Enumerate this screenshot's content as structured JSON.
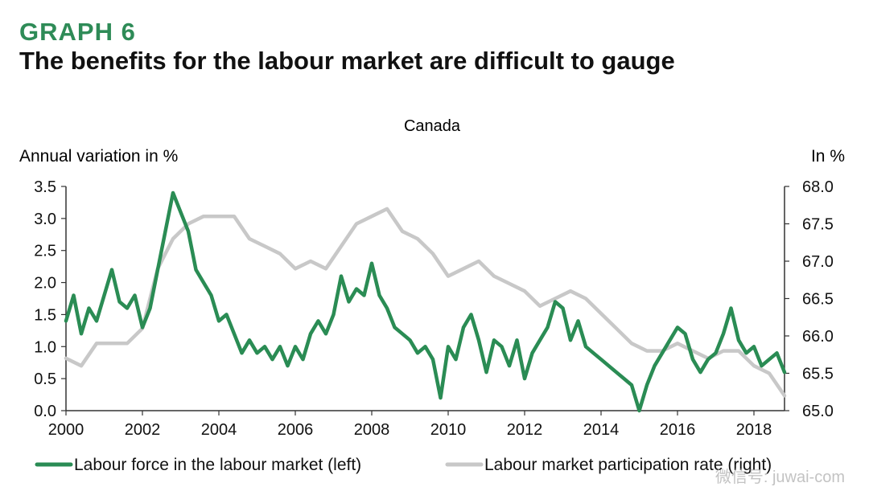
{
  "header": {
    "graph_label": "GRAPH 6",
    "title": "The benefits for the labour market are difficult to gauge"
  },
  "colors": {
    "accent_green": "#2e8b57",
    "series_green": "#2a8c54",
    "series_gray": "#c8c8c8",
    "axis": "#333333"
  },
  "chart_data": {
    "type": "line",
    "title": "Canada",
    "ylabel_left": "Annual variation in %",
    "ylabel_right": "In %",
    "xlim": [
      2000,
      2018.8
    ],
    "ylim_left": [
      0,
      3.5
    ],
    "ylim_right": [
      65.0,
      68.0
    ],
    "x_ticks": [
      "2000",
      "2002",
      "2004",
      "2006",
      "2008",
      "2010",
      "2012",
      "2014",
      "2016",
      "2018"
    ],
    "y_ticks_left": [
      "3.5",
      "3.0",
      "2.5",
      "2.0",
      "1.5",
      "1.0",
      "0.5",
      "0.0"
    ],
    "y_ticks_right": [
      "68.0",
      "67.5",
      "67.0",
      "66.5",
      "66.0",
      "65.5",
      "65.0"
    ],
    "legend_position": "bottom",
    "series": [
      {
        "name": "Labour force in the labour market (left)",
        "axis": "left",
        "color": "#2a8c54",
        "x": [
          2000.0,
          2000.2,
          2000.4,
          2000.6,
          2000.8,
          2001.0,
          2001.2,
          2001.4,
          2001.6,
          2001.8,
          2002.0,
          2002.2,
          2002.4,
          2002.6,
          2002.8,
          2003.0,
          2003.2,
          2003.4,
          2003.6,
          2003.8,
          2004.0,
          2004.2,
          2004.4,
          2004.6,
          2004.8,
          2005.0,
          2005.2,
          2005.4,
          2005.6,
          2005.8,
          2006.0,
          2006.2,
          2006.4,
          2006.6,
          2006.8,
          2007.0,
          2007.2,
          2007.4,
          2007.6,
          2007.8,
          2008.0,
          2008.2,
          2008.4,
          2008.6,
          2008.8,
          2009.0,
          2009.2,
          2009.4,
          2009.6,
          2009.8,
          2010.0,
          2010.2,
          2010.4,
          2010.6,
          2010.8,
          2011.0,
          2011.2,
          2011.4,
          2011.6,
          2011.8,
          2012.0,
          2012.2,
          2012.4,
          2012.6,
          2012.8,
          2013.0,
          2013.2,
          2013.4,
          2013.6,
          2013.8,
          2014.0,
          2014.2,
          2014.4,
          2014.6,
          2014.8,
          2015.0,
          2015.2,
          2015.4,
          2015.6,
          2015.8,
          2016.0,
          2016.2,
          2016.4,
          2016.6,
          2016.8,
          2017.0,
          2017.2,
          2017.4,
          2017.6,
          2017.8,
          2018.0,
          2018.2,
          2018.4,
          2018.6,
          2018.8
        ],
        "y": [
          1.4,
          1.8,
          1.2,
          1.6,
          1.4,
          1.8,
          2.2,
          1.7,
          1.6,
          1.8,
          1.3,
          1.6,
          2.2,
          2.8,
          3.4,
          3.1,
          2.8,
          2.2,
          2.0,
          1.8,
          1.4,
          1.5,
          1.2,
          0.9,
          1.1,
          0.9,
          1.0,
          0.8,
          1.0,
          0.7,
          1.0,
          0.8,
          1.2,
          1.4,
          1.2,
          1.5,
          2.1,
          1.7,
          1.9,
          1.8,
          2.3,
          1.8,
          1.6,
          1.3,
          1.2,
          1.1,
          0.9,
          1.0,
          0.8,
          0.2,
          1.0,
          0.8,
          1.3,
          1.5,
          1.1,
          0.6,
          1.1,
          1.0,
          0.7,
          1.1,
          0.5,
          0.9,
          1.1,
          1.3,
          1.7,
          1.6,
          1.1,
          1.4,
          1.0,
          0.9,
          0.8,
          0.7,
          0.6,
          0.5,
          0.4,
          0.0,
          0.4,
          0.7,
          0.9,
          1.1,
          1.3,
          1.2,
          0.8,
          0.6,
          0.8,
          0.9,
          1.2,
          1.6,
          1.1,
          0.9,
          1.0,
          0.7,
          0.8,
          0.9,
          0.6
        ],
        "legend_label": "Labour force in the labour market (left)"
      },
      {
        "name": "Labour market participation rate (right)",
        "axis": "right",
        "color": "#c8c8c8",
        "x": [
          2000.0,
          2000.4,
          2000.8,
          2001.2,
          2001.6,
          2002.0,
          2002.4,
          2002.8,
          2003.2,
          2003.6,
          2004.0,
          2004.4,
          2004.8,
          2005.2,
          2005.6,
          2006.0,
          2006.4,
          2006.8,
          2007.2,
          2007.6,
          2008.0,
          2008.4,
          2008.8,
          2009.2,
          2009.6,
          2010.0,
          2010.4,
          2010.8,
          2011.2,
          2011.6,
          2012.0,
          2012.4,
          2012.8,
          2013.2,
          2013.6,
          2014.0,
          2014.4,
          2014.8,
          2015.2,
          2015.6,
          2016.0,
          2016.4,
          2016.8,
          2017.2,
          2017.6,
          2018.0,
          2018.4,
          2018.8
        ],
        "y": [
          65.7,
          65.6,
          65.9,
          65.9,
          65.9,
          66.1,
          66.9,
          67.3,
          67.5,
          67.6,
          67.6,
          67.6,
          67.3,
          67.2,
          67.1,
          66.9,
          67.0,
          66.9,
          67.2,
          67.5,
          67.6,
          67.7,
          67.4,
          67.3,
          67.1,
          66.8,
          66.9,
          67.0,
          66.8,
          66.7,
          66.6,
          66.4,
          66.5,
          66.6,
          66.5,
          66.3,
          66.1,
          65.9,
          65.8,
          65.8,
          65.9,
          65.8,
          65.7,
          65.8,
          65.8,
          65.6,
          65.5,
          65.2
        ],
        "legend_label": "Labour market participation rate (right)"
      }
    ],
    "watermark": "微信号: juwai-com"
  }
}
